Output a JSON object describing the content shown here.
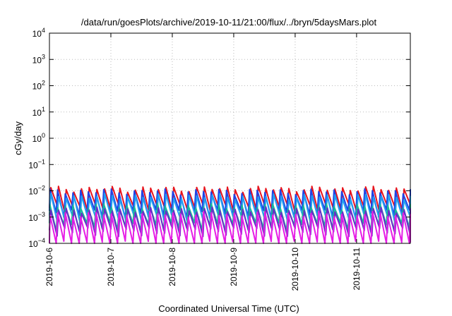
{
  "chart_data": {
    "type": "line",
    "title": "/data/run/goesPlots/archive/2019-10-11/21:00/flux/../bryn/5daysMars.plot",
    "xlabel": "Coordinated Universal Time (UTC)",
    "ylabel": "cGy/day",
    "y_scale": "log",
    "ylim": [
      0.0001,
      10000
    ],
    "xlim": [
      "2019-10-06",
      "2019-10-11 21:00"
    ],
    "x_ticks": [
      "2019-10-6",
      "2019-10-7",
      "2019-10-8",
      "2019-10-9",
      "2019-10-10",
      "2019-10-11"
    ],
    "y_ticks": [
      {
        "base": "10",
        "exp": "4"
      },
      {
        "base": "10",
        "exp": "3"
      },
      {
        "base": "10",
        "exp": "2"
      },
      {
        "base": "10",
        "exp": "1"
      },
      {
        "base": "10",
        "exp": "0"
      },
      {
        "base": "10",
        "exp": "−1"
      },
      {
        "base": "10",
        "exp": "−2"
      },
      {
        "base": "10",
        "exp": "−3"
      },
      {
        "base": "10",
        "exp": "−4"
      }
    ],
    "grid": true,
    "sawtooth_period_hours": 3,
    "series": [
      {
        "color": "#e8141c",
        "peak": 0.012,
        "trough": 0.0022
      },
      {
        "color": "#1e44e6",
        "peak": 0.0095,
        "trough": 0.0014
      },
      {
        "color": "#22a0f0",
        "peak": 0.0062,
        "trough": 0.00085
      },
      {
        "color": "#18b89a",
        "peak": 0.0026,
        "trough": 0.00045
      },
      {
        "color": "#6a2cc8",
        "peak": 0.0019,
        "trough": 0.00028
      },
      {
        "color": "#e61ee6",
        "peak": 0.0013,
        "trough": 9e-05
      }
    ]
  }
}
